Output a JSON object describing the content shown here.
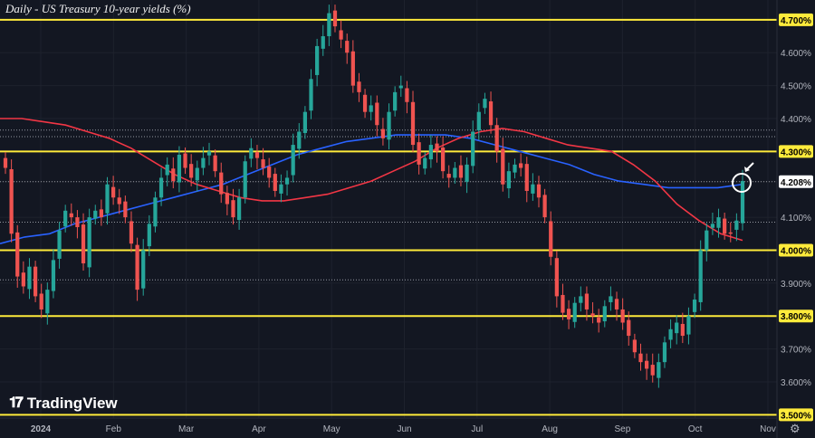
{
  "chart_data": {
    "type": "candlestick",
    "title": "Daily - US Treasury 10-year yields (%)",
    "ylim": [
      3.49,
      4.76
    ],
    "y_ticks": [
      "4.700%",
      "4.600%",
      "4.500%",
      "4.400%",
      "4.300%",
      "4.208%",
      "4.100%",
      "4.000%",
      "3.900%",
      "3.800%",
      "3.700%",
      "3.600%",
      "3.500%"
    ],
    "x_ticks": [
      "2024",
      "Feb",
      "Mar",
      "Apr",
      "May",
      "Jun",
      "Jul",
      "Aug",
      "Sep",
      "Oct",
      "Nov"
    ],
    "current_value_label": "4.208%",
    "horizontal_levels": [
      3.5,
      3.8,
      4.0,
      4.3,
      4.7
    ],
    "dotted_levels": [
      3.91,
      4.085,
      4.208,
      4.345,
      4.365
    ],
    "colors": {
      "up": "#26a69a",
      "down": "#ef5350",
      "ma_fast": "#f23645",
      "ma_slow": "#2962ff",
      "level": "#ffeb3b"
    },
    "series": [
      {
        "name": "",
        "kind": "candles",
        "close": [
          4.25,
          4.05,
          3.92,
          3.89,
          3.95,
          3.86,
          3.82,
          3.88,
          3.97,
          4.06,
          4.12,
          4.1,
          4.07,
          3.96,
          4.1,
          4.12,
          4.1,
          4.2,
          4.16,
          4.14,
          4.1,
          4.02,
          3.88,
          4.0,
          4.08,
          4.16,
          4.22,
          4.26,
          4.21,
          4.29,
          4.25,
          4.22,
          4.25,
          4.28,
          4.3,
          4.24,
          4.17,
          4.14,
          4.1,
          4.16,
          4.27,
          4.31,
          4.28,
          4.25,
          4.22,
          4.18,
          4.2,
          4.22,
          4.32,
          4.36,
          4.42,
          4.52,
          4.62,
          4.65,
          4.72,
          4.68,
          4.64,
          4.6,
          4.5,
          4.48,
          4.42,
          4.44,
          4.38,
          4.34,
          4.42,
          4.48,
          4.5,
          4.45,
          4.32,
          4.26,
          4.28,
          4.32,
          4.3,
          4.24,
          4.22,
          4.25,
          4.22,
          4.26,
          4.36,
          4.42,
          4.46,
          4.38,
          4.3,
          4.2,
          4.24,
          4.26,
          4.25,
          4.18,
          4.2,
          4.16,
          4.1,
          3.98,
          3.86,
          3.81,
          3.79,
          3.84,
          3.86,
          3.82,
          3.8,
          3.78,
          3.83,
          3.86,
          3.82,
          3.78,
          3.74,
          3.69,
          3.66,
          3.64,
          3.62,
          3.66,
          3.72,
          3.76,
          3.78,
          3.74,
          3.8,
          3.85,
          4.0,
          4.06,
          4.08,
          4.1,
          4.05,
          4.05,
          4.09,
          4.21
        ]
      }
    ],
    "ma_fast_values": [
      4.4,
      4.4,
      4.39,
      4.38,
      4.36,
      4.34,
      4.31,
      4.27,
      4.23,
      4.2,
      4.18,
      4.16,
      4.15,
      4.15,
      4.16,
      4.17,
      4.19,
      4.21,
      4.24,
      4.27,
      4.31,
      4.34,
      4.36,
      4.37,
      4.36,
      4.34,
      4.32,
      4.31,
      4.3,
      4.26,
      4.21,
      4.14,
      4.09,
      4.05,
      4.03
    ],
    "ma_slow_values": [
      4.02,
      4.04,
      4.05,
      4.08,
      4.1,
      4.12,
      4.14,
      4.16,
      4.18,
      4.2,
      4.23,
      4.26,
      4.29,
      4.31,
      4.33,
      4.34,
      4.35,
      4.35,
      4.35,
      4.34,
      4.32,
      4.3,
      4.28,
      4.26,
      4.23,
      4.21,
      4.2,
      4.19,
      4.19,
      4.19,
      4.2
    ]
  }
}
